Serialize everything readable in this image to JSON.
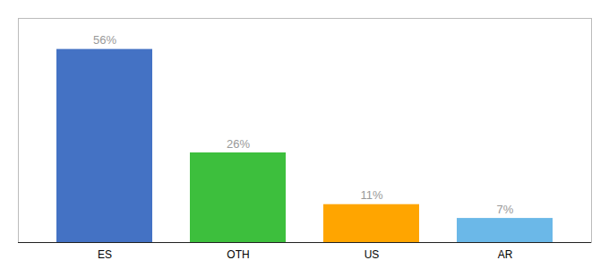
{
  "chart_data": {
    "type": "bar",
    "categories": [
      "ES",
      "OTH",
      "US",
      "AR"
    ],
    "values": [
      56,
      26,
      11,
      7
    ],
    "value_labels": [
      "56%",
      "26%",
      "11%",
      "7%"
    ],
    "colors": [
      "#4472C4",
      "#3DBF3D",
      "#FFA500",
      "#6BB8E8"
    ],
    "ylim": [
      0,
      65
    ],
    "data_labels": true,
    "tick_labels": "x"
  }
}
